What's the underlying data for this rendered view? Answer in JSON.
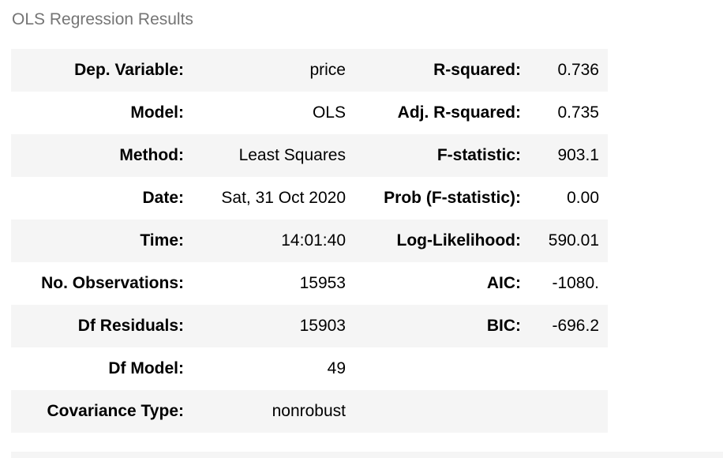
{
  "caption": "OLS Regression Results",
  "rows": [
    {
      "label1": "Dep. Variable:",
      "value1": "price",
      "label2": "R-squared:",
      "value2": "0.736"
    },
    {
      "label1": "Model:",
      "value1": "OLS",
      "label2": "Adj. R-squared:",
      "value2": "0.735"
    },
    {
      "label1": "Method:",
      "value1": "Least Squares",
      "label2": "F-statistic:",
      "value2": "903.1"
    },
    {
      "label1": "Date:",
      "value1": "Sat, 31 Oct 2020",
      "label2": "Prob (F-statistic):",
      "value2": "0.00"
    },
    {
      "label1": "Time:",
      "value1": "14:01:40",
      "label2": "Log-Likelihood:",
      "value2": "590.01"
    },
    {
      "label1": "No. Observations:",
      "value1": "15953",
      "label2": "AIC:",
      "value2": "-1080."
    },
    {
      "label1": "Df Residuals:",
      "value1": "15903",
      "label2": "BIC:",
      "value2": "-696.2"
    },
    {
      "label1": "Df Model:",
      "value1": "49",
      "label2": "",
      "value2": ""
    },
    {
      "label1": "Covariance Type:",
      "value1": "nonrobust",
      "label2": "",
      "value2": ""
    }
  ],
  "colors": {
    "caption": "#757575",
    "stripe": "#f5f5f5",
    "text": "#000000"
  }
}
